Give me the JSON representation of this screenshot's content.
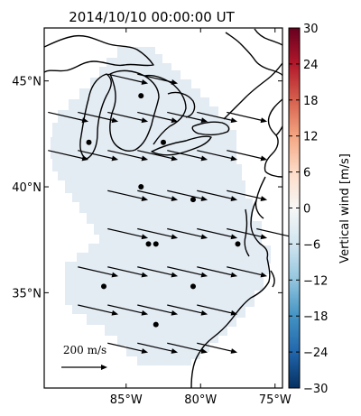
{
  "title": "2014/10/10 00:00:00 UT",
  "map": {
    "lon_range": [
      -90.5,
      -74.5
    ],
    "lat_range": [
      30.5,
      47.5
    ],
    "lon_ticks": [
      {
        "value": -85,
        "label": "85°W"
      },
      {
        "value": -80,
        "label": "80°W"
      },
      {
        "value": -75,
        "label": "75°W"
      }
    ],
    "lat_ticks": [
      {
        "value": 45,
        "label": "45°N"
      },
      {
        "value": 40,
        "label": "40°N"
      },
      {
        "value": 35,
        "label": "35°N"
      }
    ],
    "field_color": "#e3ebf3",
    "coast_color": "#000000",
    "station_color": "#000000"
  },
  "colorbar": {
    "label": "Vertical wind [m/s]",
    "min": -30,
    "max": 30,
    "tick_labels": [
      "30",
      "24",
      "18",
      "12",
      "6",
      "0",
      "−6",
      "−12",
      "−18",
      "−24",
      "−30"
    ],
    "tick_values": [
      30,
      24,
      18,
      12,
      6,
      0,
      -6,
      -12,
      -18,
      -24,
      -30
    ],
    "colormap": "RdBu_r",
    "stops": [
      "#053061",
      "#2166ac",
      "#4393c3",
      "#92c5de",
      "#d1e5f0",
      "#f7f7f7",
      "#fddbc7",
      "#f4a582",
      "#d6604d",
      "#b2182b",
      "#67001f"
    ]
  },
  "scale_arrow": {
    "label": "200 m/s",
    "value_ms": 200
  },
  "stations": [
    {
      "lon": -84.0,
      "lat": 44.3
    },
    {
      "lon": -87.5,
      "lat": 42.1
    },
    {
      "lon": -82.5,
      "lat": 42.1
    },
    {
      "lon": -84.0,
      "lat": 40.0
    },
    {
      "lon": -80.5,
      "lat": 39.4
    },
    {
      "lon": -83.5,
      "lat": 37.3
    },
    {
      "lon": -83.0,
      "lat": 37.3
    },
    {
      "lon": -77.5,
      "lat": 37.3
    },
    {
      "lon": -86.5,
      "lat": 35.3
    },
    {
      "lon": -80.5,
      "lat": 35.3
    },
    {
      "lon": -83.0,
      "lat": 33.5
    }
  ],
  "wind_vectors": {
    "arrow_length_ms": 200,
    "rows": [
      {
        "lat": 45.1,
        "lons": [
          -86.0,
          -84.0
        ]
      },
      {
        "lat": 43.3,
        "lons": [
          -90.0,
          -88.0,
          -86.0,
          -84.0,
          -82.0,
          -80.0,
          -78.0
        ]
      },
      {
        "lat": 41.5,
        "lons": [
          -90.0,
          -88.0,
          -86.0,
          -84.0,
          -82.0,
          -80.0,
          -78.0
        ]
      },
      {
        "lat": 39.6,
        "lons": [
          -86.0,
          -84.0,
          -82.0,
          -80.0,
          -78.0
        ]
      },
      {
        "lat": 37.8,
        "lons": [
          -86.0,
          -84.0,
          -82.0,
          -80.0,
          -78.0,
          -76.0
        ]
      },
      {
        "lat": 36.0,
        "lons": [
          -88.0,
          -86.0,
          -84.0,
          -82.0,
          -80.0,
          -78.0
        ]
      },
      {
        "lat": 34.2,
        "lons": [
          -88.0,
          -86.0,
          -84.0,
          -82.0,
          -80.0
        ]
      },
      {
        "lat": 32.4,
        "lons": [
          -86.0,
          -84.0,
          -82.0,
          -80.0
        ]
      }
    ],
    "direction_deg_from_east": -13
  }
}
